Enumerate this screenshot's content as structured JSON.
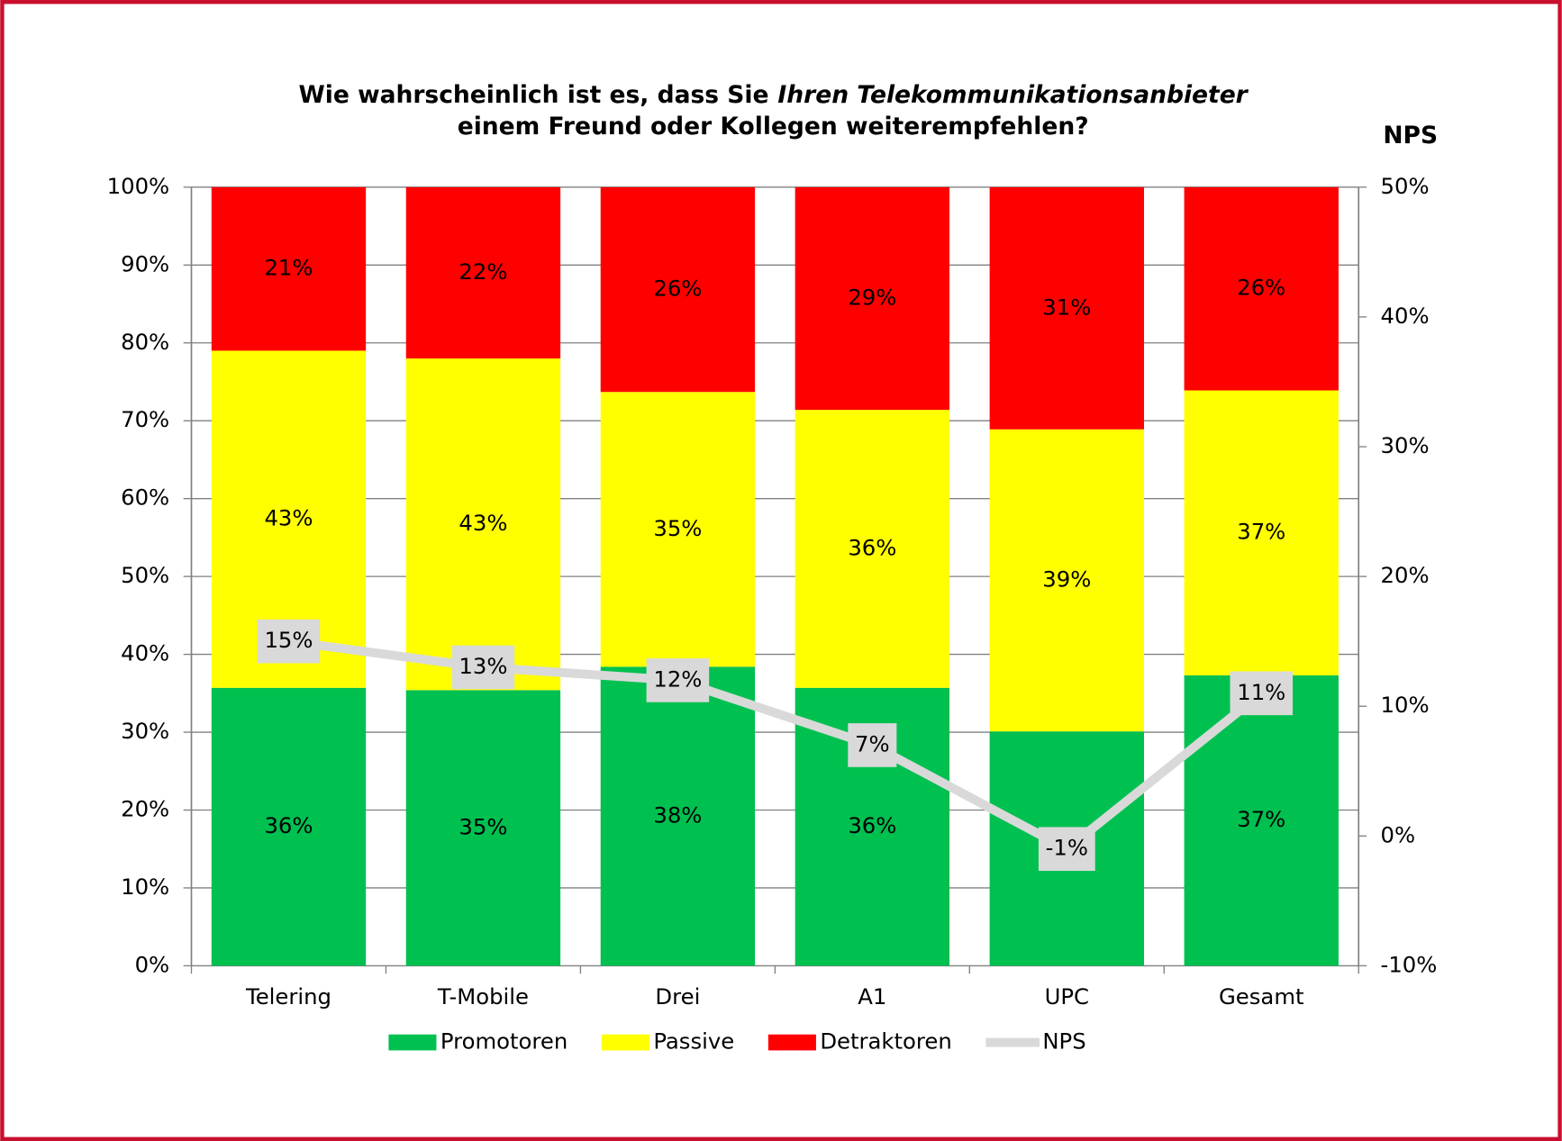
{
  "chart_data": {
    "type": "bar",
    "stacked": true,
    "title": [
      "Wie wahrscheinlich ist es, dass Sie",
      "Ihren Telekommunikationsanbieter",
      "einem Freund oder Kollegen weiterempfehlen?"
    ],
    "y2label": "NPS",
    "categories": [
      "Telering",
      "T-Mobile",
      "Drei",
      "A1",
      "UPC",
      "Gesamt"
    ],
    "series": [
      {
        "name": "Promotoren",
        "color": "#00c050",
        "values": [
          35.7,
          35.4,
          38.4,
          35.7,
          30.1,
          37.3
        ],
        "value_labels": [
          "36%",
          "35%",
          "38%",
          "36%",
          "30%",
          "37%"
        ]
      },
      {
        "name": "Passive",
        "color": "#ffff00",
        "values": [
          43.3,
          42.6,
          35.3,
          35.7,
          38.8,
          36.6
        ],
        "value_labels": [
          "43%",
          "43%",
          "35%",
          "36%",
          "39%",
          "37%"
        ]
      },
      {
        "name": "Detraktoren",
        "color": "#ff0000",
        "values": [
          21.0,
          22.0,
          26.3,
          28.6,
          31.1,
          26.1
        ],
        "value_labels": [
          "21%",
          "22%",
          "26%",
          "29%",
          "31%",
          "26%"
        ]
      },
      {
        "name": "NPS",
        "type": "line",
        "axis": "y2",
        "color": "#d9d9d9",
        "label_color": "#c00000",
        "values": [
          15,
          13,
          12,
          7,
          -1,
          11
        ],
        "value_labels": [
          "15%",
          "13%",
          "12%",
          "7%",
          "-1%",
          "11%"
        ]
      }
    ],
    "ylim": [
      0,
      100
    ],
    "yticks": [
      {
        "value": 0,
        "label": "0%"
      },
      {
        "value": 10,
        "label": "10%"
      },
      {
        "value": 20,
        "label": "20%"
      },
      {
        "value": 30,
        "label": "30%"
      },
      {
        "value": 40,
        "label": "40%"
      },
      {
        "value": 50,
        "label": "50%"
      },
      {
        "value": 60,
        "label": "60%"
      },
      {
        "value": 70,
        "label": "70%"
      },
      {
        "value": 80,
        "label": "80%"
      },
      {
        "value": 90,
        "label": "90%"
      },
      {
        "value": 100,
        "label": "100%"
      }
    ],
    "y2lim": [
      -10,
      50
    ],
    "y2ticks": [
      {
        "value": -10,
        "label": "-10%"
      },
      {
        "value": 0,
        "label": "0%"
      },
      {
        "value": 10,
        "label": "10%"
      },
      {
        "value": 20,
        "label": "20%"
      },
      {
        "value": 30,
        "label": "30%"
      },
      {
        "value": 40,
        "label": "40%"
      },
      {
        "value": 50,
        "label": "50%"
      }
    ],
    "grid": true,
    "legend": "bottom"
  }
}
